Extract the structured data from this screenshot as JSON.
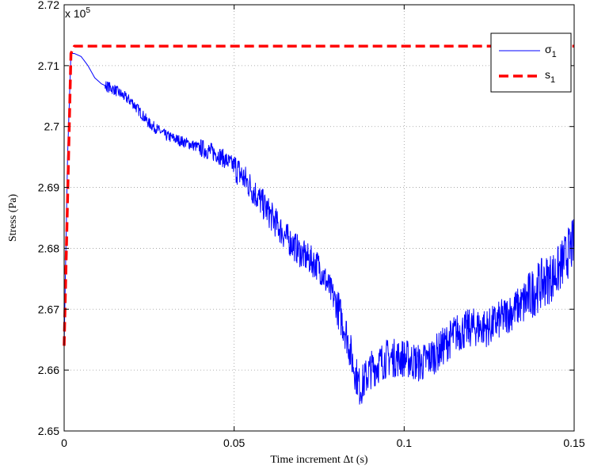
{
  "chart_data": {
    "type": "line",
    "xlabel": "Time increment Δt (s)",
    "ylabel": "Stress (Pa)",
    "y_exponent_label": "x 10",
    "y_exponent_power": "5",
    "xlim": [
      0,
      0.15
    ],
    "ylim": [
      265000,
      272000
    ],
    "x_ticks": [
      0,
      0.05,
      0.1,
      0.15
    ],
    "x_tick_labels": [
      "0",
      "0.05",
      "0.1",
      "0.15"
    ],
    "y_ticks": [
      265000,
      266000,
      267000,
      268000,
      269000,
      270000,
      271000,
      272000
    ],
    "y_tick_labels": [
      "2.65",
      "2.66",
      "2.67",
      "2.68",
      "2.69",
      "2.7",
      "2.71",
      "2.72"
    ],
    "grid": true,
    "legend_position": "top-right",
    "series": [
      {
        "name": "σ",
        "subscript": "1",
        "color": "#0000ff",
        "style": "solid",
        "noisy": true,
        "x": [
          0,
          0.001,
          0.002,
          0.003,
          0.005,
          0.007,
          0.009,
          0.011,
          0.015,
          0.02,
          0.025,
          0.03,
          0.035,
          0.04,
          0.045,
          0.05,
          0.055,
          0.06,
          0.065,
          0.07,
          0.075,
          0.08,
          0.083,
          0.085,
          0.087,
          0.09,
          0.095,
          0.1,
          0.105,
          0.11,
          0.115,
          0.12,
          0.125,
          0.13,
          0.135,
          0.14,
          0.145,
          0.15
        ],
        "y": [
          266400,
          269500,
          271200,
          271200,
          271150,
          271000,
          270800,
          270700,
          270600,
          270400,
          270050,
          269850,
          269750,
          269650,
          269550,
          269350,
          269000,
          268600,
          268200,
          267900,
          267700,
          267100,
          266600,
          266100,
          265700,
          266000,
          266200,
          266200,
          266100,
          266300,
          266600,
          266700,
          266700,
          266900,
          267100,
          267400,
          267600,
          268100
        ]
      },
      {
        "name": "s",
        "subscript": "1",
        "color": "#ff0000",
        "style": "dashed",
        "x": [
          0,
          0.002,
          0.003,
          0.15
        ],
        "y": [
          266400,
          271200,
          271320,
          271320
        ]
      }
    ]
  }
}
